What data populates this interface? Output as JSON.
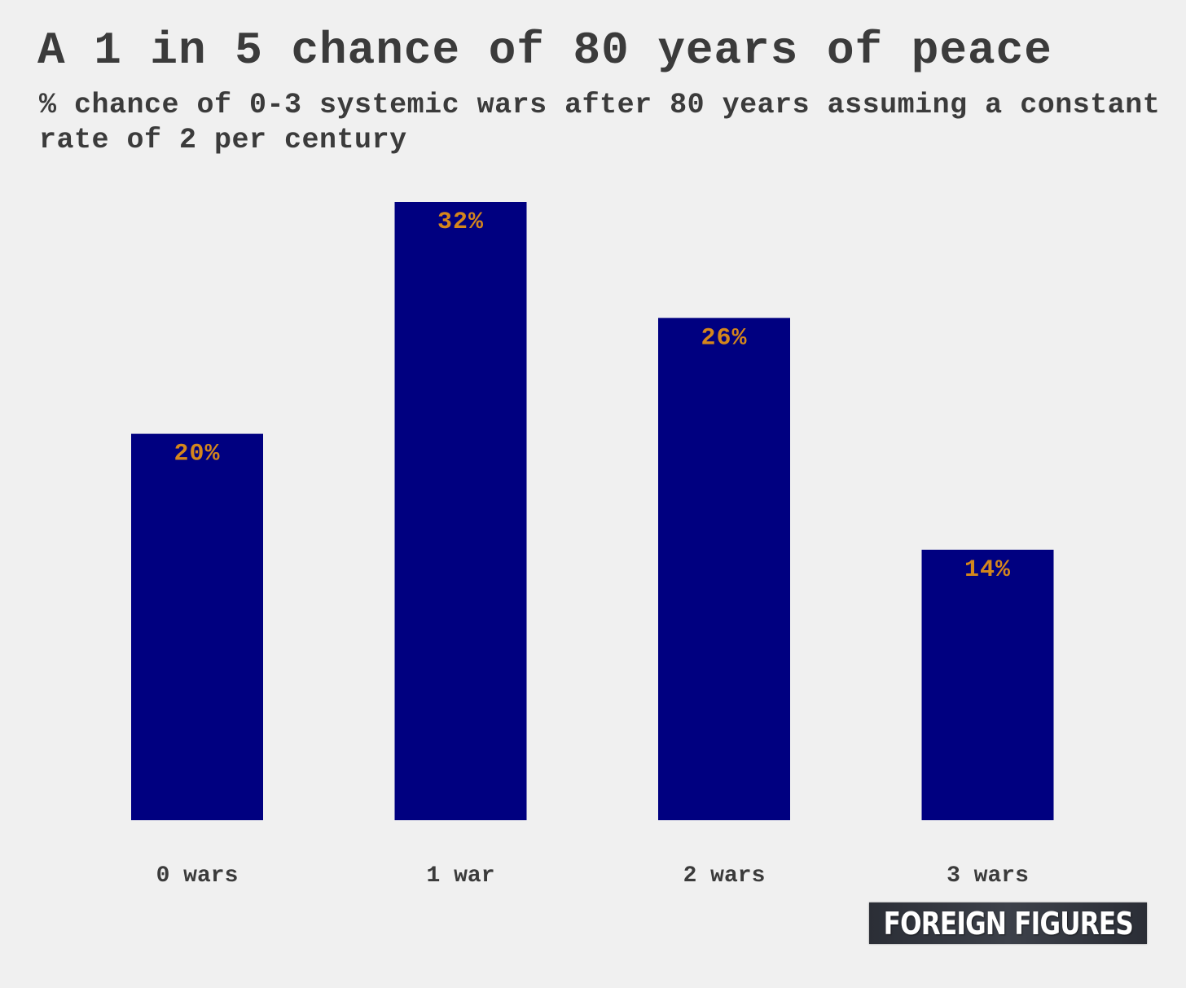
{
  "header": {
    "title": "A 1 in 5 chance of 80 years of peace",
    "subtitle": "% chance of 0-3 systemic wars after 80 years assuming a constant rate of 2 per century"
  },
  "chart_data": {
    "type": "bar",
    "title": "A 1 in 5 chance of 80 years of peace",
    "subtitle": "% chance of 0-3 systemic wars after 80 years assuming a constant rate of 2 per century",
    "categories": [
      "0 wars",
      "1 war",
      "2 wars",
      "3 wars"
    ],
    "values": [
      20,
      32,
      26,
      14
    ],
    "data_labels": [
      "20%",
      "32%",
      "26%",
      "14%"
    ],
    "xlabel": "",
    "ylabel": "",
    "ylim": [
      0,
      32
    ],
    "grid": false,
    "legend": "none",
    "bar_color": "#000080",
    "label_color": "#d4861c"
  },
  "branding": {
    "logo_text": "FOREIGN FIGURES"
  }
}
